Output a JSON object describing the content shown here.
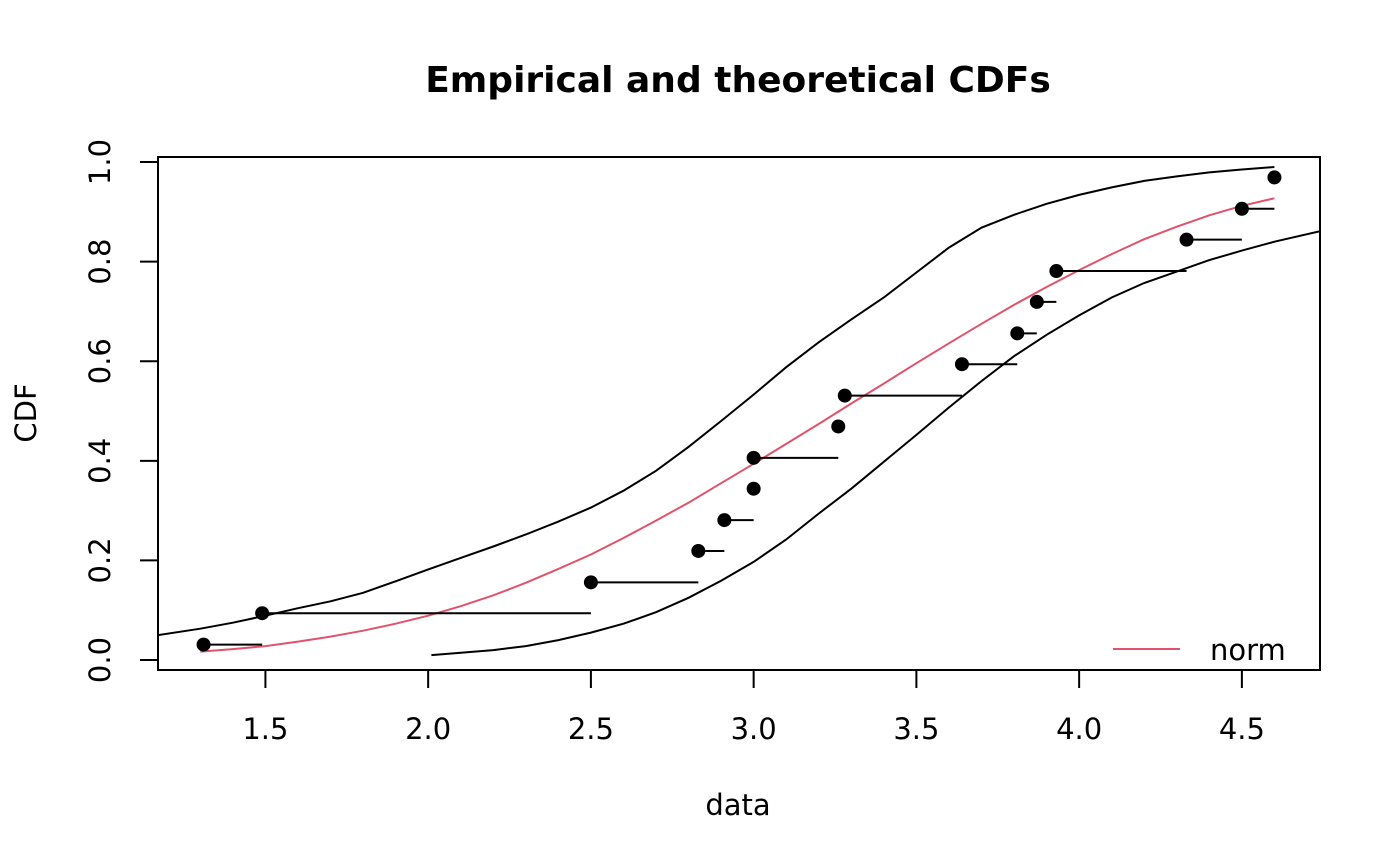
{
  "chart_data": {
    "type": "line",
    "title": "Empirical and theoretical CDFs",
    "xlabel": "data",
    "ylabel": "CDF",
    "xlim": [
      1.17,
      4.74
    ],
    "ylim": [
      -0.02,
      1.01
    ],
    "x_ticks": [
      1.5,
      2.0,
      2.5,
      3.0,
      3.5,
      4.0,
      4.5
    ],
    "x_tick_labels": [
      "1.5",
      "2.0",
      "2.5",
      "3.0",
      "3.5",
      "4.0",
      "4.5"
    ],
    "y_ticks": [
      0.0,
      0.2,
      0.4,
      0.6,
      0.8,
      1.0
    ],
    "y_tick_labels": [
      "0.0",
      "0.2",
      "0.4",
      "0.6",
      "0.8",
      "1.0"
    ],
    "grid": false,
    "legend": {
      "position": "bottom-right",
      "entries": [
        {
          "label": "norm",
          "color": "#DF536B"
        }
      ]
    },
    "ecdf_points": [
      {
        "x": 1.31,
        "y": 0.031,
        "x_next": 1.49
      },
      {
        "x": 1.49,
        "y": 0.094,
        "x_next": 2.5
      },
      {
        "x": 2.5,
        "y": 0.156,
        "x_next": 2.83
      },
      {
        "x": 2.83,
        "y": 0.219,
        "x_next": 2.91
      },
      {
        "x": 2.91,
        "y": 0.281,
        "x_next": 3.0
      },
      {
        "x": 3.0,
        "y": 0.344,
        "x_next": 3.0
      },
      {
        "x": 3.0,
        "y": 0.406,
        "x_next": 3.26
      },
      {
        "x": 3.26,
        "y": 0.469,
        "x_next": 3.28
      },
      {
        "x": 3.28,
        "y": 0.531,
        "x_next": 3.64
      },
      {
        "x": 3.64,
        "y": 0.594,
        "x_next": 3.81
      },
      {
        "x": 3.81,
        "y": 0.656,
        "x_next": 3.87
      },
      {
        "x": 3.87,
        "y": 0.719,
        "x_next": 3.93
      },
      {
        "x": 3.93,
        "y": 0.781,
        "x_next": 4.33
      },
      {
        "x": 4.33,
        "y": 0.844,
        "x_next": 4.5
      },
      {
        "x": 4.5,
        "y": 0.906,
        "x_next": 4.6
      },
      {
        "x": 4.6,
        "y": 0.969,
        "x_next": 4.6
      }
    ],
    "series": [
      {
        "color": "#DF536B",
        "x": [
          1.3,
          1.4,
          1.5,
          1.6,
          1.7,
          1.8,
          1.9,
          2.0,
          2.1,
          2.2,
          2.3,
          2.4,
          2.5,
          2.6,
          2.7,
          2.8,
          2.9,
          3.0,
          3.1,
          3.2,
          3.3,
          3.4,
          3.5,
          3.6,
          3.7,
          3.8,
          3.9,
          4.0,
          4.1,
          4.2,
          4.3,
          4.4,
          4.5,
          4.6
        ],
        "y": [
          0.017,
          0.022,
          0.028,
          0.037,
          0.047,
          0.059,
          0.073,
          0.089,
          0.108,
          0.13,
          0.155,
          0.183,
          0.212,
          0.245,
          0.28,
          0.316,
          0.355,
          0.394,
          0.434,
          0.474,
          0.515,
          0.555,
          0.596,
          0.636,
          0.675,
          0.713,
          0.749,
          0.783,
          0.815,
          0.845,
          0.87,
          0.893,
          0.912,
          0.927
        ]
      },
      {
        "color": "#000000",
        "x": [
          1.17,
          1.3,
          1.4,
          1.5,
          1.6,
          1.7,
          1.8,
          1.9,
          2.0,
          2.1,
          2.2,
          2.3,
          2.4,
          2.5,
          2.6,
          2.7,
          2.8,
          2.9,
          3.0,
          3.1,
          3.2,
          3.3,
          3.4,
          3.5,
          3.6,
          3.7,
          3.8,
          3.9,
          4.0,
          4.1,
          4.2,
          4.3,
          4.4,
          4.5,
          4.6
        ],
        "y": [
          0.05,
          0.063,
          0.075,
          0.089,
          0.104,
          0.118,
          0.135,
          0.158,
          0.182,
          0.205,
          0.228,
          0.252,
          0.278,
          0.306,
          0.34,
          0.38,
          0.428,
          0.48,
          0.533,
          0.588,
          0.638,
          0.684,
          0.728,
          0.778,
          0.828,
          0.868,
          0.894,
          0.916,
          0.934,
          0.949,
          0.962,
          0.971,
          0.979,
          0.985,
          0.99
        ]
      },
      {
        "color": "#000000",
        "x": [
          2.01,
          2.2,
          2.3,
          2.4,
          2.5,
          2.6,
          2.7,
          2.8,
          2.9,
          3.0,
          3.1,
          3.2,
          3.3,
          3.4,
          3.5,
          3.6,
          3.7,
          3.8,
          3.9,
          4.0,
          4.1,
          4.2,
          4.3,
          4.4,
          4.5,
          4.6,
          4.74
        ],
        "y": [
          0.01,
          0.02,
          0.028,
          0.04,
          0.055,
          0.073,
          0.096,
          0.125,
          0.159,
          0.197,
          0.242,
          0.294,
          0.344,
          0.398,
          0.452,
          0.507,
          0.56,
          0.61,
          0.653,
          0.692,
          0.728,
          0.757,
          0.78,
          0.803,
          0.822,
          0.84,
          0.861
        ]
      }
    ]
  }
}
